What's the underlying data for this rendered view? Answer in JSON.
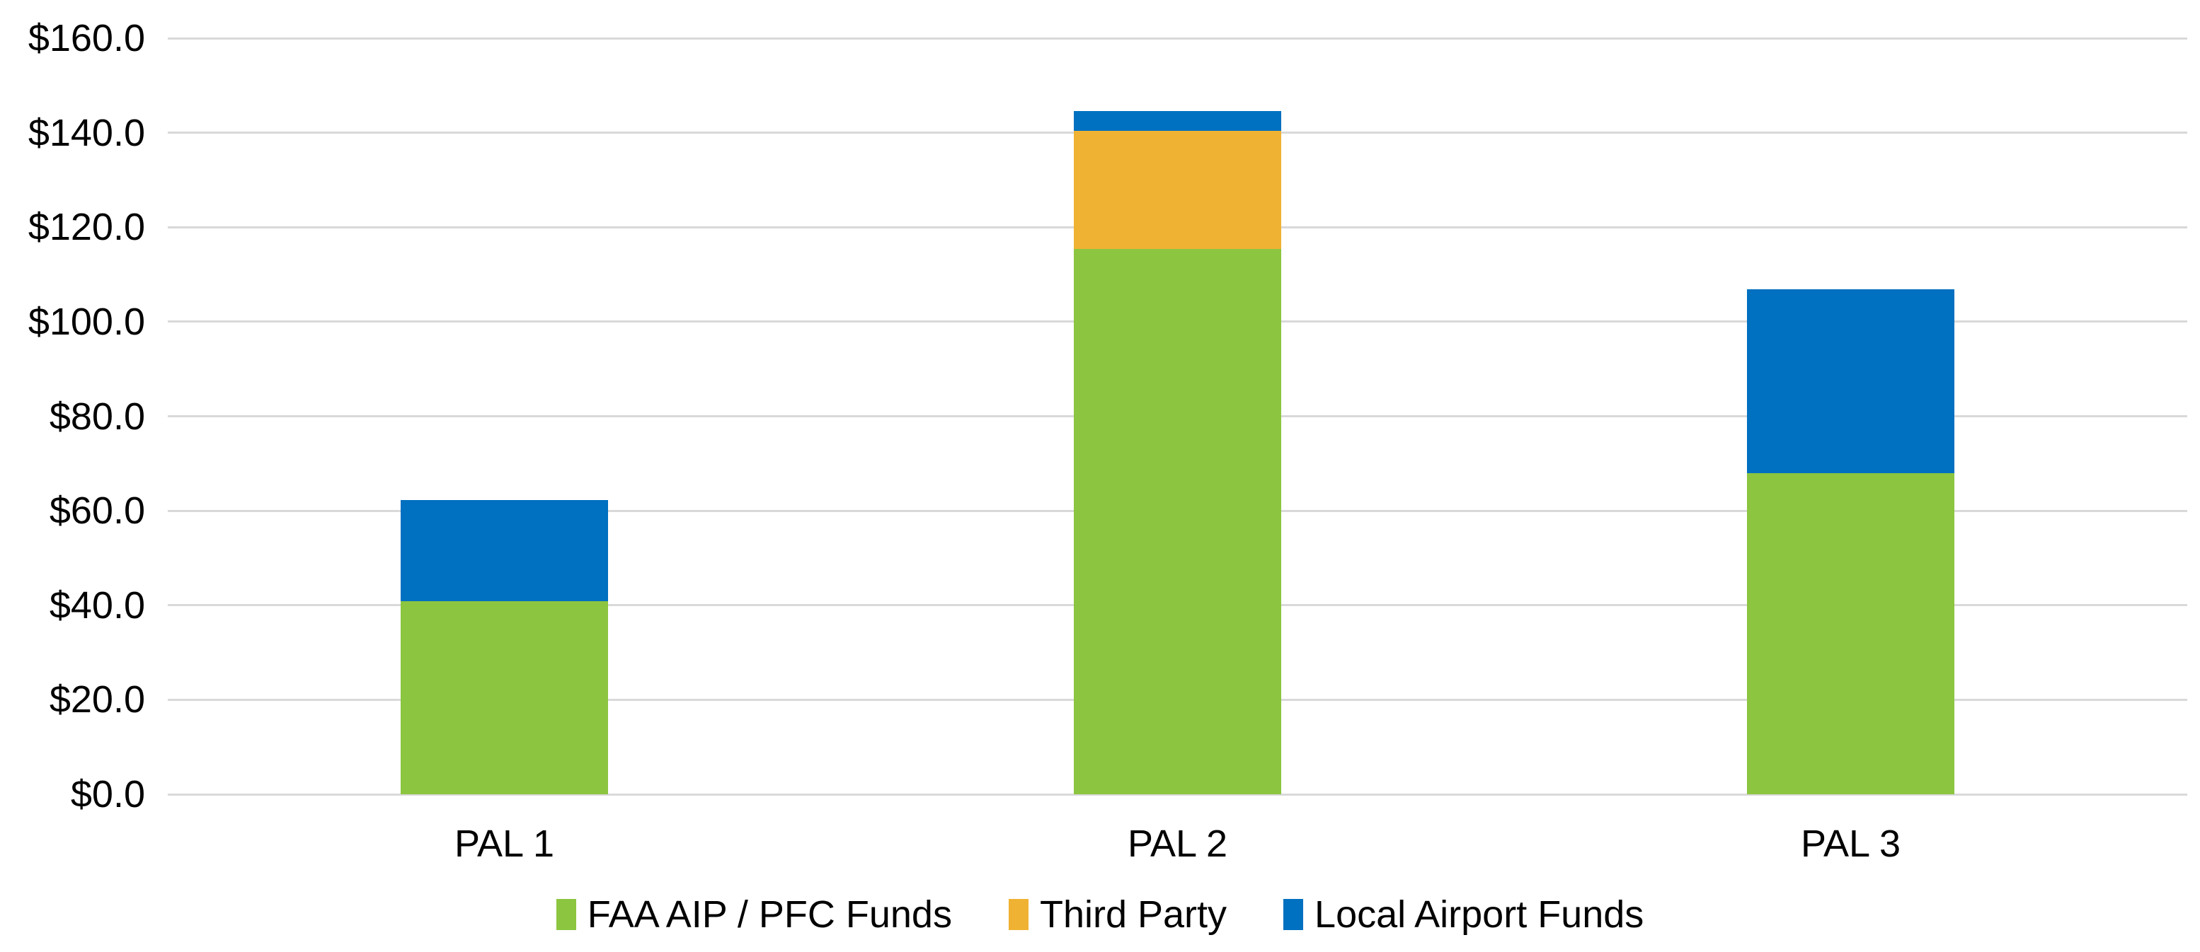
{
  "chart_data": {
    "type": "bar",
    "stacked": true,
    "title": "",
    "categories": [
      "PAL 1",
      "PAL 2",
      "PAL 3"
    ],
    "series": [
      {
        "name": "FAA AIP / PFC Funds",
        "color": "#8CC540",
        "values": [
          40.9,
          115.4,
          68.0
        ]
      },
      {
        "name": "Third Party",
        "color": "#F0B232",
        "values": [
          0,
          25.0,
          0
        ]
      },
      {
        "name": "Local Airport Funds",
        "color": "#0070C0",
        "values": [
          21.3,
          4.2,
          38.8
        ]
      }
    ],
    "stack_totals": [
      62.2,
      144.6,
      106.8
    ],
    "y_axis": {
      "min": 0,
      "max": 160,
      "step": 20,
      "tick_labels": [
        "$0.0",
        "$20.0",
        "$40.0",
        "$60.0",
        "$80.0",
        "$100.0",
        "$120.0",
        "$140.0",
        "$160.0"
      ]
    },
    "x_axis": {
      "tick_labels": [
        "PAL 1",
        "PAL 2",
        "PAL 3"
      ]
    },
    "grid": true,
    "legend_position": "bottom",
    "colors": {
      "gridline": "#D9D9D9",
      "text": "#000000",
      "background": "#FFFFFF"
    }
  }
}
